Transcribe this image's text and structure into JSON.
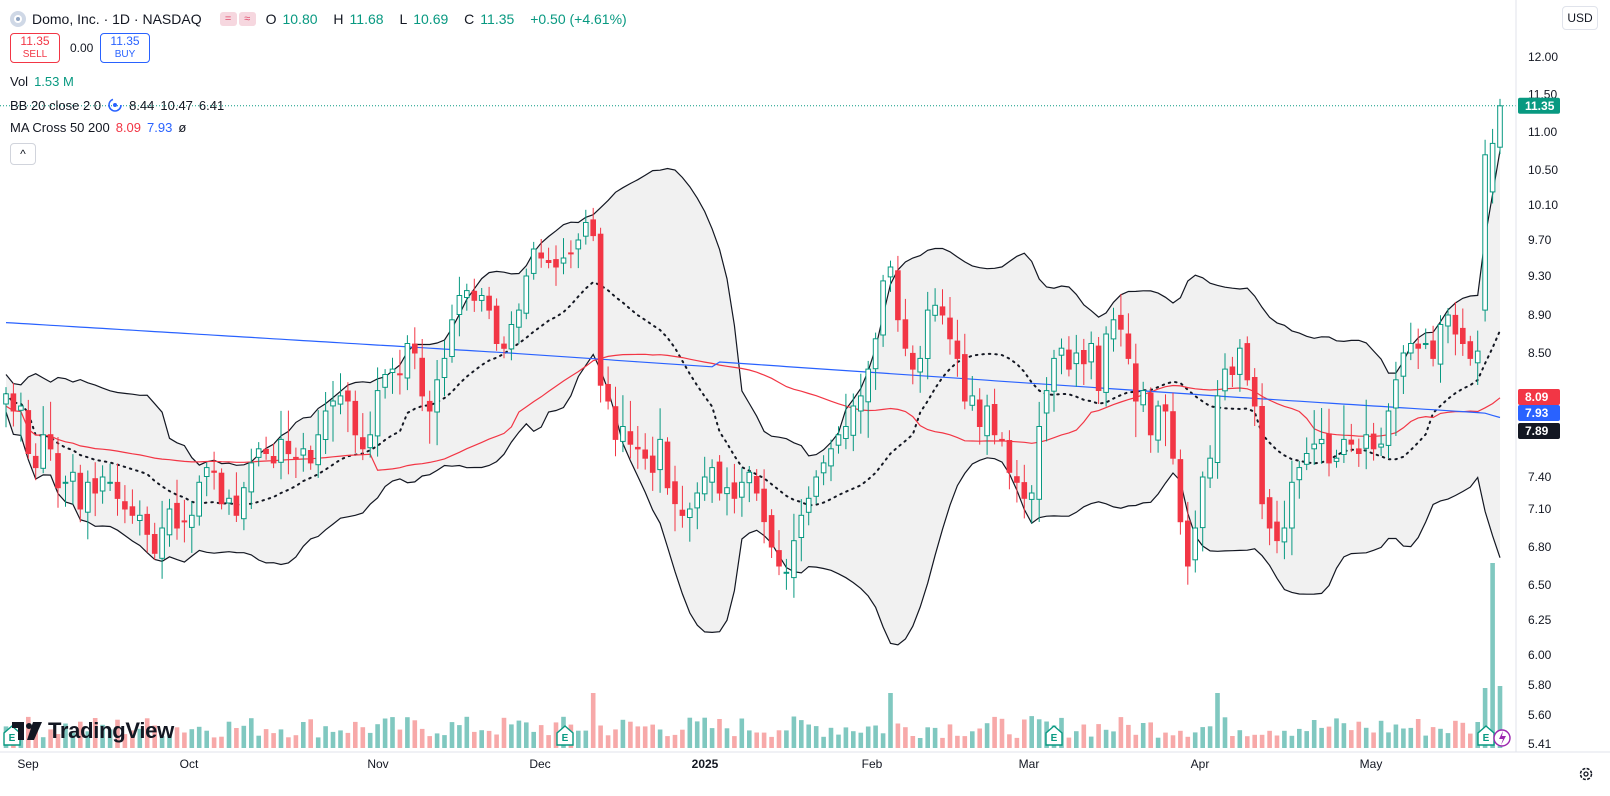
{
  "header": {
    "symbol_title": "Domo, Inc. · 1D · NASDAQ",
    "open_label": "O",
    "open": "10.80",
    "high_label": "H",
    "high": "11.68",
    "low_label": "L",
    "low": "10.69",
    "close_label": "C",
    "close": "11.35",
    "change": "+0.50 (+4.61%)"
  },
  "trade": {
    "sell_price": "11.35",
    "sell_label": "SELL",
    "spread": "0.00",
    "buy_price": "11.35",
    "buy_label": "BUY"
  },
  "indicators": {
    "vol_label": "Vol",
    "vol_value": "1.53 M",
    "bb_label": "BB 20 close 2 0",
    "bb_basis": "8.44",
    "bb_upper": "10.47",
    "bb_lower": "6.41",
    "ma_label": "MA Cross 50 200",
    "ma_fast": "8.09",
    "ma_slow": "7.93",
    "ma_suffix": "ø"
  },
  "currency": "USD",
  "collapse_glyph": "^",
  "brand": "TradingView",
  "colors": {
    "up": "#089981",
    "down": "#f23645",
    "ma_fast": "#f23645",
    "ma_slow": "#2962ff",
    "price_line": "#089981",
    "bb_fill": "#e6e6e6",
    "vol_up": "#80c8c0",
    "vol_down": "#f7a9a9"
  },
  "icons": [
    "domo-logo-icon",
    "chart-mode-icon",
    "chevron-up-icon",
    "earnings-icon",
    "dividend-icon",
    "settings-gear-icon"
  ],
  "chart_data": {
    "type": "candlestick",
    "title": "Domo, Inc. · 1D · NASDAQ",
    "y_axis_side": "right",
    "ylim": [
      5.41,
      12.25
    ],
    "y_ticks": [
      "12.00",
      "11.50",
      "11.00",
      "10.50",
      "10.10",
      "9.70",
      "9.30",
      "8.90",
      "8.50",
      "8.09",
      "7.93",
      "7.89",
      "7.40",
      "7.10",
      "6.80",
      "6.50",
      "6.25",
      "6.00",
      "5.80",
      "5.60",
      "5.41"
    ],
    "x_ticks": [
      "Sep",
      "Oct",
      "Nov",
      "Dec",
      "2025",
      "Feb",
      "Mar",
      "Apr",
      "May"
    ],
    "price_labels": [
      {
        "value": "11.35",
        "kind": "last"
      },
      {
        "value": "8.09",
        "kind": "ma-fast"
      },
      {
        "value": "7.93",
        "kind": "ma-slow"
      },
      {
        "value": "7.89",
        "kind": "prev"
      }
    ],
    "series": [
      {
        "name": "BB 20 close 2 0",
        "type": "band"
      },
      {
        "name": "MA Cross 50 200",
        "type": "line-pair"
      },
      {
        "name": "Vol",
        "type": "volume"
      }
    ],
    "closes": [
      8.12,
      7.95,
      8.0,
      7.65,
      7.5,
      7.85,
      7.7,
      7.3,
      7.35,
      7.45,
      7.1,
      7.35,
      7.25,
      7.4,
      7.35,
      7.2,
      7.1,
      7.05,
      7.05,
      6.9,
      6.75,
      6.95,
      7.1,
      6.95,
      7.0,
      7.05,
      7.35,
      7.5,
      7.45,
      7.15,
      7.2,
      7.05,
      7.3,
      7.55,
      7.7,
      7.65,
      7.55,
      7.8,
      7.65,
      7.6,
      7.7,
      7.55,
      7.85,
      7.95,
      8.05,
      8.1,
      8.05,
      7.85,
      7.7,
      7.85,
      8.15,
      8.3,
      8.35,
      8.3,
      8.6,
      8.5,
      8.1,
      7.95,
      8.25,
      8.45,
      8.85,
      9.1,
      9.15,
      9.05,
      9.1,
      8.95,
      8.6,
      8.55,
      8.8,
      8.95,
      9.3,
      9.6,
      9.5,
      9.45,
      9.4,
      9.5,
      9.55,
      9.7,
      9.9,
      9.75,
      8.2,
      8.05,
      7.8,
      7.9,
      7.75,
      7.7,
      7.6,
      7.45,
      7.8,
      7.3,
      7.15,
      7.05,
      7.1,
      7.25,
      7.4,
      7.5,
      7.25,
      7.3,
      7.2,
      7.35,
      7.45,
      7.25,
      7.0,
      6.8,
      6.65,
      6.6,
      6.85,
      7.05,
      7.2,
      7.4,
      7.55,
      7.7,
      7.85,
      7.9,
      8.0,
      8.1,
      8.35,
      8.65,
      9.25,
      9.4,
      8.85,
      8.55,
      8.35,
      8.45,
      8.95,
      9.0,
      8.9,
      8.65,
      8.45,
      8.05,
      8.1,
      7.9,
      8.0,
      7.85,
      7.8,
      7.45,
      7.35,
      7.2,
      7.25,
      7.9,
      8.15,
      8.45,
      8.55,
      8.35,
      8.5,
      8.4,
      8.6,
      8.15,
      8.7,
      8.85,
      8.75,
      8.45,
      8.05,
      8.15,
      7.85,
      8.0,
      7.95,
      7.6,
      7.0,
      6.65,
      6.95,
      7.4,
      7.6,
      8.1,
      8.35,
      8.3,
      8.55,
      8.25,
      8.0,
      7.15,
      6.95,
      6.85,
      6.95,
      7.35,
      7.5,
      7.65,
      7.75,
      7.8,
      7.55,
      7.6,
      7.8,
      7.75,
      7.65,
      7.85,
      7.7,
      7.75,
      7.95,
      8.25,
      8.5,
      8.6,
      8.55,
      8.6,
      8.45,
      8.8,
      8.9,
      8.7,
      8.6,
      8.45,
      8.52,
      10.7,
      10.85,
      11.35
    ]
  }
}
